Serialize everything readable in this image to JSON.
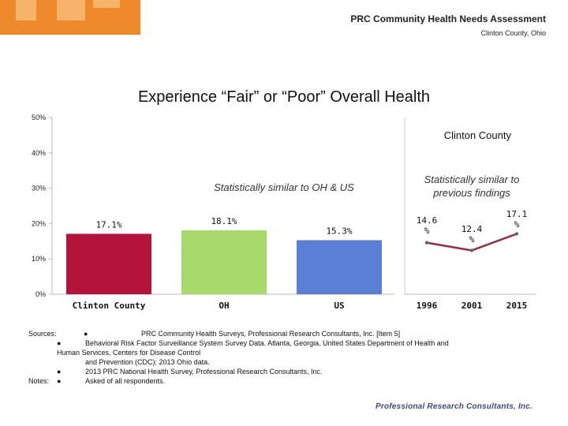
{
  "header": {
    "title": "PRC Community Health Needs Assessment",
    "subtitle": "Clinton County, Ohio"
  },
  "colors": {
    "orange": "#ee8a2c",
    "clinton": "#b5143a",
    "oh": "#a8d96b",
    "us": "#5b7fd4",
    "trend_line": "#9e2a3f"
  },
  "chart_data": [
    {
      "type": "bar",
      "title": "Experience “Fair” or “Poor” Overall Health",
      "categories": [
        "Clinton County",
        "OH",
        "US"
      ],
      "values": [
        17.1,
        18.1,
        15.3
      ],
      "value_labels": [
        "17.1%",
        "18.1%",
        "15.3%"
      ],
      "ylim": [
        0,
        50
      ],
      "yticks": [
        "0%",
        "10%",
        "20%",
        "30%",
        "40%",
        "50%"
      ],
      "annotation": "Statistically similar to OH & US",
      "grid": false
    },
    {
      "type": "line",
      "title": "Clinton County",
      "x": [
        "1996",
        "2001",
        "2015"
      ],
      "values": [
        14.6,
        12.4,
        17.1
      ],
      "value_labels": [
        [
          "14.6",
          "%"
        ],
        [
          "12.4",
          "%"
        ],
        [
          "17.1",
          "%"
        ]
      ],
      "ylim": [
        0,
        50
      ],
      "annotation": [
        "Statistically similar to",
        "previous findings"
      ]
    }
  ],
  "notes": {
    "sources_label": "Sources:",
    "sources": [
      "PRC Community Health Surveys, Professional Research Consultants, Inc. [Item 5]",
      "Behavioral Risk Factor Surveillance System Survey Data. Atlanta, Georgia. United States Department of Health and",
      "Human Services, Centers for Disease Control",
      "and Prevention (CDC): 2013 Ohio data.",
      "2013 PRC National Health Survey, Professional Research Consultants, Inc."
    ],
    "notes_label": "Notes:",
    "notes": [
      "Asked of all respondents."
    ],
    "bullet": "●"
  },
  "footer": {
    "logo_text": "Professional Research Consultants, Inc."
  }
}
